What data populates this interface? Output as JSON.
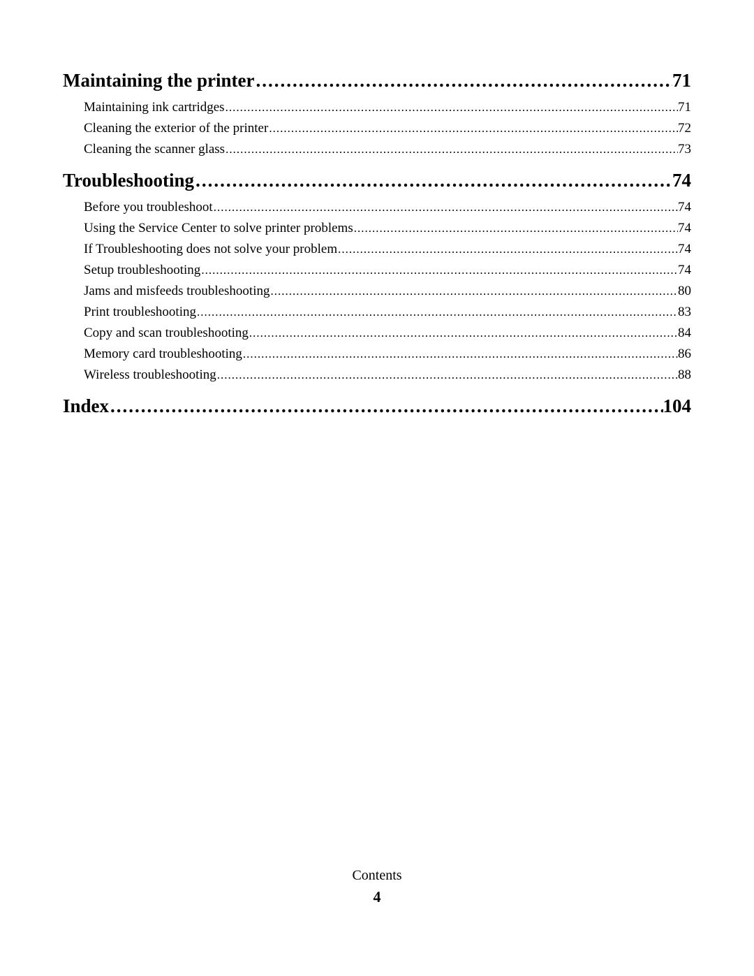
{
  "dots_heading": "..................................................................................................................................................................",
  "dots_item": "........................................................................................................................................................................................................................................................................................",
  "sections": [
    {
      "title": "Maintaining the printer",
      "page": "71",
      "items": [
        {
          "title": "Maintaining ink cartridges",
          "page": "71"
        },
        {
          "title": "Cleaning the exterior of the printer",
          "page": "72"
        },
        {
          "title": "Cleaning the scanner glass",
          "page": "73"
        }
      ]
    },
    {
      "title": "Troubleshooting",
      "page": "74",
      "items": [
        {
          "title": "Before you troubleshoot",
          "page": "74"
        },
        {
          "title": "Using the Service Center to solve printer problems",
          "page": "74"
        },
        {
          "title": "If Troubleshooting does not solve your problem",
          "page": "74"
        },
        {
          "title": "Setup troubleshooting",
          "page": "74"
        },
        {
          "title": "Jams and misfeeds troubleshooting",
          "page": "80"
        },
        {
          "title": "Print troubleshooting",
          "page": "83"
        },
        {
          "title": "Copy and scan troubleshooting",
          "page": "84"
        },
        {
          "title": "Memory card troubleshooting",
          "page": "86"
        },
        {
          "title": "Wireless troubleshooting",
          "page": "88"
        }
      ]
    },
    {
      "title": "Index",
      "page": "104",
      "items": []
    }
  ],
  "footer": {
    "label": "Contents",
    "page": "4"
  }
}
